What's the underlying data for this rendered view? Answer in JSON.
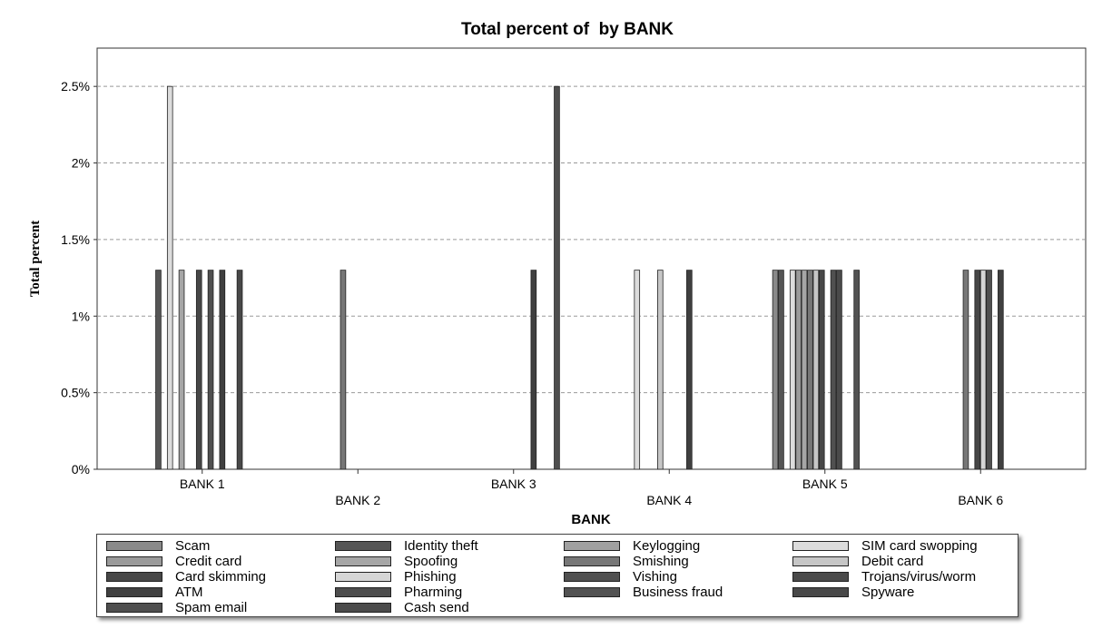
{
  "chart_data": {
    "type": "bar",
    "title": "Total percent of  by BANK",
    "xlabel": "BANK",
    "ylabel": "Total percent",
    "ylim": [
      0,
      2.75
    ],
    "yticks": [
      {
        "value": 0,
        "label": "0%"
      },
      {
        "value": 0.5,
        "label": "0.5%"
      },
      {
        "value": 1,
        "label": "1%"
      },
      {
        "value": 1.5,
        "label": "1.5%"
      },
      {
        "value": 2,
        "label": "2%"
      },
      {
        "value": 2.5,
        "label": "2.5%"
      }
    ],
    "grid": true,
    "legend_position": "bottom",
    "categories": [
      "BANK 1",
      "BANK 2",
      "BANK 3",
      "BANK 4",
      "BANK 5",
      "BANK 6"
    ],
    "series": [
      {
        "name": "Scam",
        "color": "#8a8a8a",
        "values": [
          0,
          0,
          0,
          0,
          1.3,
          0
        ]
      },
      {
        "name": "Identity theft",
        "color": "#555555",
        "values": [
          1.3,
          0,
          0,
          0,
          1.3,
          0
        ]
      },
      {
        "name": "Keylogging",
        "color": "#a0a0a0",
        "values": [
          0,
          0,
          0,
          0,
          0,
          0
        ]
      },
      {
        "name": "SIM card swopping",
        "color": "#dcdcdc",
        "values": [
          2.5,
          0,
          0,
          1.3,
          1.3,
          0
        ]
      },
      {
        "name": "Credit card",
        "color": "#9a9a9a",
        "values": [
          0,
          0,
          0,
          0,
          1.3,
          0
        ]
      },
      {
        "name": "Spoofing",
        "color": "#a6a6a6",
        "values": [
          1.3,
          0,
          0,
          0,
          1.3,
          0
        ]
      },
      {
        "name": "Smishing",
        "color": "#777777",
        "values": [
          0,
          1.3,
          0,
          0,
          1.3,
          1.3
        ]
      },
      {
        "name": "Debit card",
        "color": "#c6c6c6",
        "values": [
          0,
          0,
          0,
          1.3,
          1.3,
          0
        ]
      },
      {
        "name": "Card skimming",
        "color": "#474747",
        "values": [
          1.3,
          0,
          0,
          0,
          1.3,
          1.3
        ]
      },
      {
        "name": "Phishing",
        "color": "#d6d6d6",
        "values": [
          0,
          0,
          0,
          0,
          0,
          1.3
        ]
      },
      {
        "name": "Vishing",
        "color": "#505050",
        "values": [
          1.3,
          0,
          0,
          0,
          1.3,
          1.3
        ]
      },
      {
        "name": "Trojans/virus/worm",
        "color": "#4a4a4a",
        "values": [
          0,
          0,
          0,
          0,
          1.3,
          0
        ]
      },
      {
        "name": "ATM",
        "color": "#404040",
        "values": [
          1.3,
          0,
          1.3,
          1.3,
          0,
          1.3
        ]
      },
      {
        "name": "Pharming",
        "color": "#4d4d4d",
        "values": [
          0,
          0,
          0,
          0,
          0,
          0
        ]
      },
      {
        "name": "Business fraud",
        "color": "#525252",
        "values": [
          0,
          0,
          0,
          0,
          1.3,
          0
        ]
      },
      {
        "name": "Spyware",
        "color": "#484848",
        "values": [
          1.3,
          0,
          0,
          0,
          0,
          0
        ]
      },
      {
        "name": "Spam email",
        "color": "#4e4e4e",
        "values": [
          0,
          0,
          2.5,
          0,
          0,
          0
        ]
      },
      {
        "name": "Cash send",
        "color": "#4b4b4b",
        "values": [
          0,
          0,
          0,
          0,
          0,
          0
        ]
      }
    ]
  }
}
